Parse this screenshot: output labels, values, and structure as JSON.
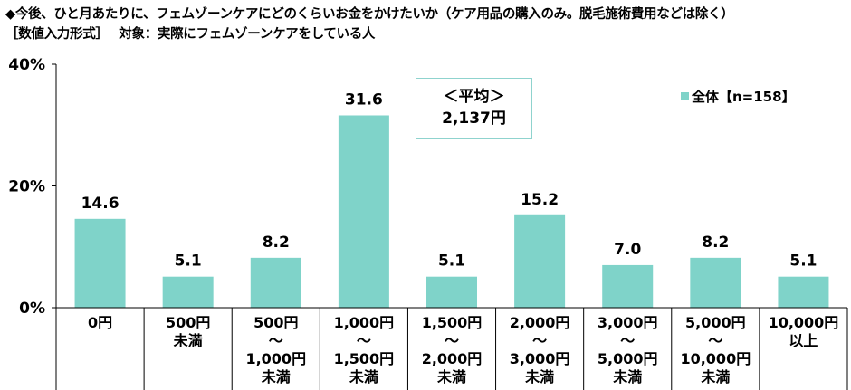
{
  "title_line1": "◆今後、ひと月あたりに、フェムゾーンケアにどのくらいお金をかけたいか（ケア用品の購入のみ。脱毛施術費用などは除く）",
  "title_line2": "［数値入力形式］　 対象：実際にフェムゾーンケアをしている人",
  "average": {
    "label": "＜平均＞",
    "value": "2,137円"
  },
  "colors": {
    "bar": "#7fd3c9",
    "axis": "#000000",
    "box_border": "#8fd3ce"
  },
  "chart_data": {
    "type": "bar",
    "categories": [
      [
        "0円"
      ],
      [
        "500円",
        "未満"
      ],
      [
        "500円",
        "～",
        "1,000円",
        "未満"
      ],
      [
        "1,000円",
        "～",
        "1,500円",
        "未満"
      ],
      [
        "1,500円",
        "～",
        "2,000円",
        "未満"
      ],
      [
        "2,000円",
        "～",
        "3,000円",
        "未満"
      ],
      [
        "3,000円",
        "～",
        "5,000円",
        "未満"
      ],
      [
        "5,000円",
        "～",
        "10,000円",
        "未満"
      ],
      [
        "10,000円",
        "以上"
      ]
    ],
    "series": [
      {
        "name": "全体【n=158】",
        "values": [
          14.6,
          5.1,
          8.2,
          31.6,
          5.1,
          15.2,
          7.0,
          8.2,
          5.1
        ]
      }
    ],
    "data_labels": [
      "14.6",
      "5.1",
      "8.2",
      "31.6",
      "5.1",
      "15.2",
      "7.0",
      "8.2",
      "5.1"
    ],
    "ylim": [
      0,
      40
    ],
    "yticks": [
      "0%",
      "20%",
      "40%"
    ],
    "ytick_values": [
      0,
      20,
      40
    ],
    "grid": false,
    "legend": "top-right"
  }
}
